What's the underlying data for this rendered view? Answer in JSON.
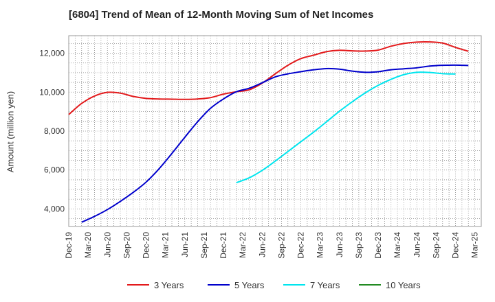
{
  "chart_data": {
    "type": "line",
    "title": "[6804]  Trend of Mean of 12-Month Moving Sum of Net Incomes",
    "ylabel": "Amount (million yen)",
    "xlabel": "",
    "ylim": [
      3100,
      12900
    ],
    "yticks": [
      4000,
      6000,
      8000,
      10000,
      12000
    ],
    "ytick_labels": [
      "4,000",
      "6,000",
      "8,000",
      "10,000",
      "12,000"
    ],
    "x_labels": [
      "Dec-19",
      "Mar-20",
      "Jun-20",
      "Sep-20",
      "Dec-20",
      "Mar-21",
      "Jun-21",
      "Sep-21",
      "Dec-21",
      "Mar-22",
      "Jun-22",
      "Sep-22",
      "Dec-22",
      "Mar-23",
      "Jun-23",
      "Sep-23",
      "Dec-23",
      "Mar-24",
      "Jun-24",
      "Sep-24",
      "Dec-24",
      "Mar-25"
    ],
    "grid": true,
    "legend_position": "bottom",
    "series": [
      {
        "name": "3 Years",
        "color": "#e31a1c",
        "points": [
          [
            0,
            8850
          ],
          [
            1,
            9420
          ],
          [
            2,
            9800
          ],
          [
            3,
            9990
          ],
          [
            4,
            9950
          ],
          [
            5,
            9780
          ],
          [
            6,
            9680
          ],
          [
            7,
            9650
          ],
          [
            8,
            9640
          ],
          [
            9,
            9630
          ],
          [
            10,
            9650
          ],
          [
            11,
            9720
          ],
          [
            12,
            9900
          ],
          [
            13,
            10020
          ],
          [
            14,
            10120
          ],
          [
            15,
            10460
          ],
          [
            16,
            10930
          ],
          [
            17,
            11380
          ],
          [
            18,
            11720
          ],
          [
            19,
            11900
          ],
          [
            20,
            12080
          ],
          [
            21,
            12150
          ],
          [
            22,
            12120
          ],
          [
            23,
            12110
          ],
          [
            24,
            12160
          ],
          [
            25,
            12360
          ],
          [
            26,
            12500
          ],
          [
            27,
            12570
          ],
          [
            28,
            12580
          ],
          [
            29,
            12520
          ],
          [
            30,
            12300
          ],
          [
            31,
            12100
          ]
        ]
      },
      {
        "name": "5 Years",
        "color": "#0000cc",
        "points": [
          [
            1,
            3320
          ],
          [
            2,
            3620
          ],
          [
            3,
            3970
          ],
          [
            4,
            4390
          ],
          [
            5,
            4850
          ],
          [
            6,
            5380
          ],
          [
            7,
            6060
          ],
          [
            8,
            6850
          ],
          [
            9,
            7680
          ],
          [
            10,
            8480
          ],
          [
            11,
            9170
          ],
          [
            12,
            9650
          ],
          [
            13,
            10020
          ],
          [
            14,
            10200
          ],
          [
            15,
            10480
          ],
          [
            16,
            10780
          ],
          [
            17,
            10940
          ],
          [
            18,
            11050
          ],
          [
            19,
            11150
          ],
          [
            20,
            11210
          ],
          [
            21,
            11180
          ],
          [
            22,
            11080
          ],
          [
            23,
            11020
          ],
          [
            24,
            11050
          ],
          [
            25,
            11150
          ],
          [
            26,
            11200
          ],
          [
            27,
            11250
          ],
          [
            28,
            11340
          ],
          [
            29,
            11380
          ],
          [
            30,
            11390
          ],
          [
            31,
            11370
          ]
        ]
      },
      {
        "name": "7 Years",
        "color": "#00e5ee",
        "points": [
          [
            13,
            5350
          ],
          [
            14,
            5600
          ],
          [
            15,
            5980
          ],
          [
            16,
            6450
          ],
          [
            17,
            6950
          ],
          [
            18,
            7450
          ],
          [
            19,
            7950
          ],
          [
            20,
            8480
          ],
          [
            21,
            9020
          ],
          [
            22,
            9510
          ],
          [
            23,
            9960
          ],
          [
            24,
            10350
          ],
          [
            25,
            10660
          ],
          [
            26,
            10900
          ],
          [
            27,
            11020
          ],
          [
            28,
            11010
          ],
          [
            29,
            10950
          ],
          [
            30,
            10930
          ]
        ]
      },
      {
        "name": "10 Years",
        "color": "#228b22",
        "points": []
      }
    ]
  }
}
